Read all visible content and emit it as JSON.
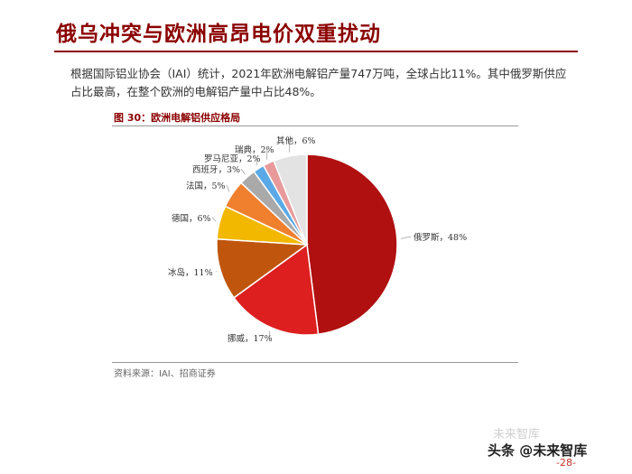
{
  "header": {
    "title": "俄乌冲突与欧洲高昂电价双重扰动"
  },
  "intro": {
    "text": "根据国际铝业协会（IAI）统计，2021年欧洲电解铝产量747万吨，全球占比11%。其中俄罗斯供应占比最高，在整个欧洲的电解铝产量中占比48%。"
  },
  "figure": {
    "caption": "图 30：欧洲电解铝供应格局",
    "source": "资料来源：IAI、招商证券"
  },
  "chart_data": {
    "type": "pie",
    "slices": [
      {
        "label": "俄罗斯",
        "value": 48,
        "display": "俄罗斯，48%",
        "color": "#b01010"
      },
      {
        "label": "挪威",
        "value": 17,
        "display": "挪威，17%",
        "color": "#dd1f1f"
      },
      {
        "label": "冰岛",
        "value": 11,
        "display": "冰岛，11%",
        "color": "#c0560e"
      },
      {
        "label": "德国",
        "value": 6,
        "display": "德国，6%",
        "color": "#f2b800"
      },
      {
        "label": "法国",
        "value": 5,
        "display": "法国，5%",
        "color": "#f07f2e"
      },
      {
        "label": "西班牙",
        "value": 3,
        "display": "西班牙，3%",
        "color": "#a9a9a9"
      },
      {
        "label": "罗马尼亚",
        "value": 2,
        "display": "罗马尼亚，2%",
        "color": "#5aa9e6"
      },
      {
        "label": "瑞典",
        "value": 2,
        "display": "瑞典，2%",
        "color": "#e89a9a"
      },
      {
        "label": "其他",
        "value": 6,
        "display": "其他，6%",
        "color": "#e3e3e3"
      }
    ]
  },
  "watermark": {
    "faint": "未来智库",
    "main": "头条 @未来智库",
    "page": "-28-"
  }
}
